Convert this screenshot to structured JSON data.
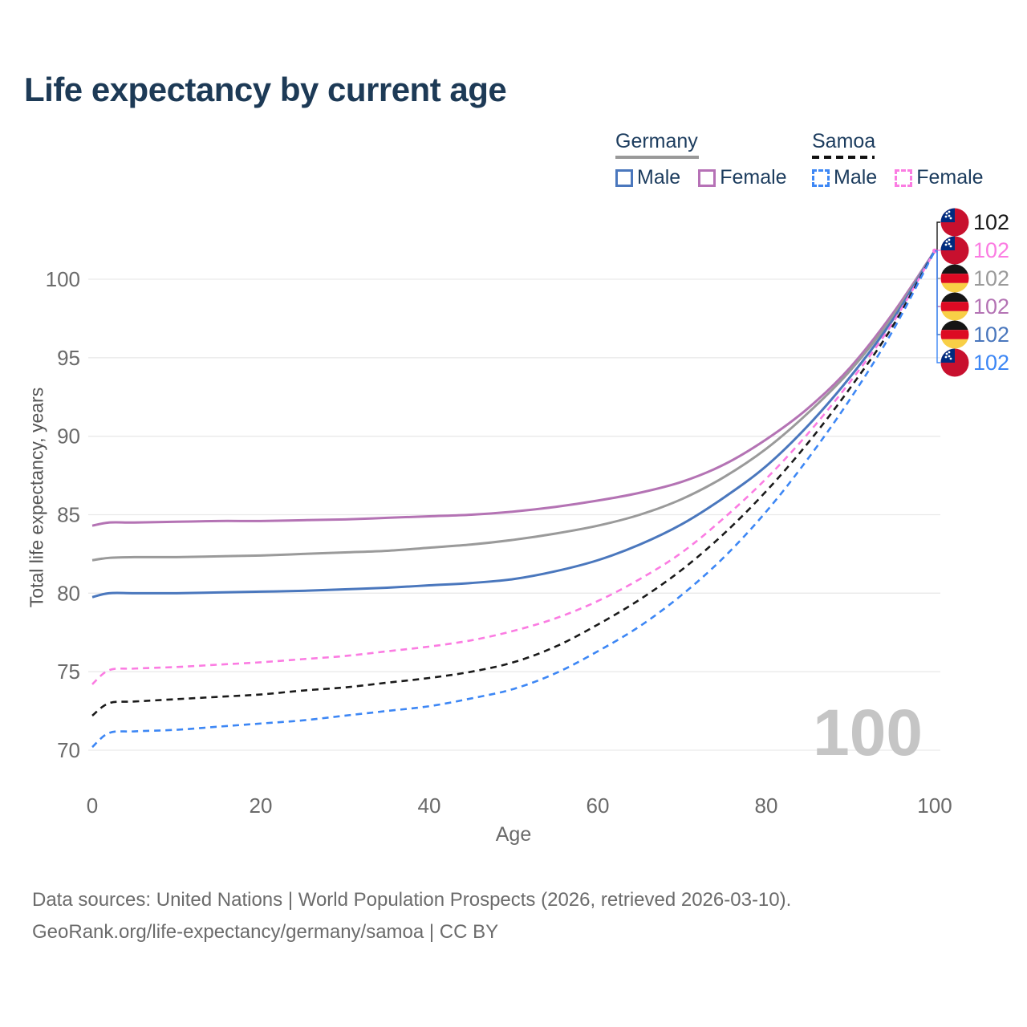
{
  "title": "Life expectancy by current age",
  "legend": {
    "germany": {
      "label": "Germany",
      "male": "Male",
      "female": "Female"
    },
    "samoa": {
      "label": "Samoa",
      "male": "Male",
      "female": "Female"
    }
  },
  "y_axis_title": "Total life expectancy, years",
  "x_axis_title": "Age",
  "watermark_age": "100",
  "footer": {
    "line1": "Data sources: United Nations | World Population Prospects (2026, retrieved 2026-03-10).",
    "line2": "GeoRank.org/life-expectancy/germany/samoa | CC BY"
  },
  "colors": {
    "title_text": "#1d3a56",
    "germany_male": "#4a77bd",
    "germany_female": "#b473b4",
    "germany_all": "#9a9a9a",
    "samoa_male": "#3d87f5",
    "samoa_female": "#fb7ce2",
    "samoa_all": "#1a1a1a",
    "gridline": "#e9e9e9",
    "tick_text": "#6a6a6a",
    "watermark": "#c5c5c5",
    "germany_flag": [
      "#151515",
      "#dd0a23",
      "#f8cf46"
    ],
    "samoa_flag": [
      "#c8102e",
      "#002b7f",
      "#ffffff"
    ]
  },
  "chart_data": {
    "type": "line",
    "title": "Life expectancy by current age",
    "xlabel": "Age",
    "ylabel": "Total life expectancy, years",
    "x_ticks": [
      0,
      20,
      40,
      60,
      80,
      100
    ],
    "y_ticks": [
      70,
      75,
      80,
      85,
      90,
      95,
      100
    ],
    "xlim": [
      0,
      100
    ],
    "ylim": [
      68.5,
      102.5
    ],
    "grid": "horizontal-only",
    "legend_position": "top-right",
    "ages": [
      0,
      2,
      5,
      10,
      15,
      20,
      25,
      30,
      35,
      40,
      45,
      50,
      55,
      60,
      65,
      70,
      75,
      80,
      85,
      90,
      95,
      100
    ],
    "series": [
      {
        "id": "germany-female",
        "country": "Germany",
        "sex": "Female",
        "color": "#b473b4",
        "dashed": false,
        "values": [
          84.3,
          84.5,
          84.5,
          84.55,
          84.6,
          84.6,
          84.65,
          84.7,
          84.8,
          84.9,
          85.0,
          85.2,
          85.5,
          85.9,
          86.4,
          87.1,
          88.2,
          89.8,
          91.8,
          94.4,
          97.8,
          101.8
        ]
      },
      {
        "id": "germany-all",
        "country": "Germany",
        "sex": "All",
        "color": "#9a9a9a",
        "dashed": false,
        "values": [
          82.1,
          82.25,
          82.3,
          82.3,
          82.35,
          82.4,
          82.5,
          82.6,
          82.7,
          82.9,
          83.1,
          83.4,
          83.8,
          84.3,
          85.0,
          86.0,
          87.4,
          89.2,
          91.5,
          94.2,
          97.6,
          101.8
        ]
      },
      {
        "id": "germany-male",
        "country": "Germany",
        "sex": "Male",
        "color": "#4a77bd",
        "dashed": false,
        "values": [
          79.75,
          80.0,
          80.0,
          80.0,
          80.05,
          80.1,
          80.15,
          80.25,
          80.35,
          80.5,
          80.65,
          80.9,
          81.4,
          82.1,
          83.1,
          84.4,
          86.1,
          88.1,
          90.7,
          93.8,
          97.4,
          101.8
        ]
      },
      {
        "id": "samoa-female",
        "country": "Samoa",
        "sex": "Female",
        "color": "#fb7ce2",
        "dashed": true,
        "values": [
          74.2,
          75.1,
          75.2,
          75.3,
          75.45,
          75.6,
          75.8,
          76.0,
          76.3,
          76.6,
          77.0,
          77.6,
          78.4,
          79.5,
          80.9,
          82.6,
          84.8,
          87.3,
          90.2,
          93.5,
          97.2,
          101.8
        ]
      },
      {
        "id": "samoa-all",
        "country": "Samoa",
        "sex": "All",
        "color": "#1a1a1a",
        "dashed": true,
        "values": [
          72.2,
          73.0,
          73.1,
          73.25,
          73.4,
          73.55,
          73.8,
          74.0,
          74.3,
          74.6,
          75.0,
          75.6,
          76.6,
          78.0,
          79.6,
          81.5,
          83.8,
          86.5,
          89.6,
          93.1,
          97.0,
          101.8
        ]
      },
      {
        "id": "samoa-male",
        "country": "Samoa",
        "sex": "Male",
        "color": "#3d87f5",
        "dashed": true,
        "values": [
          70.2,
          71.1,
          71.2,
          71.3,
          71.5,
          71.7,
          71.9,
          72.2,
          72.5,
          72.8,
          73.3,
          73.9,
          74.9,
          76.3,
          77.9,
          79.9,
          82.3,
          85.2,
          88.6,
          92.4,
          96.7,
          101.8
        ]
      }
    ],
    "end_labels": [
      {
        "series": "samoa-all",
        "flag": "samoa",
        "value": "102",
        "color": "#1a1a1a"
      },
      {
        "series": "samoa-female",
        "flag": "samoa",
        "value": "102",
        "color": "#fb7ce2"
      },
      {
        "series": "germany-all",
        "flag": "germany",
        "value": "102",
        "color": "#9a9a9a"
      },
      {
        "series": "germany-female",
        "flag": "germany",
        "value": "102",
        "color": "#b473b4"
      },
      {
        "series": "germany-male",
        "flag": "germany",
        "value": "102",
        "color": "#4a77bd"
      },
      {
        "series": "samoa-male",
        "flag": "samoa",
        "value": "102",
        "color": "#3d87f5"
      }
    ]
  }
}
